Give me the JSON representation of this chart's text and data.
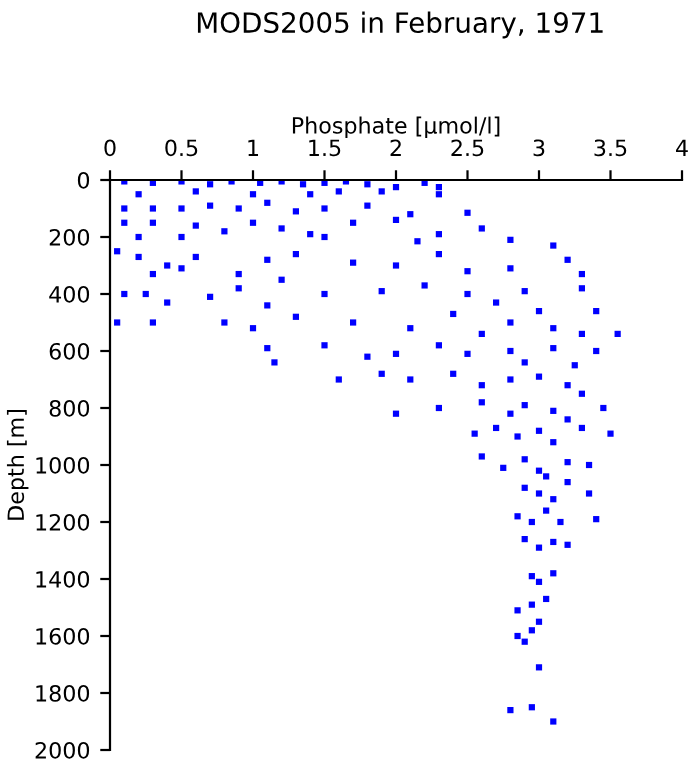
{
  "chart_data": {
    "type": "scatter",
    "title": "MODS2005 in February, 1971",
    "xlabel": "Phosphate [µmol/l]",
    "ylabel": "Depth [m]",
    "xlim": [
      0,
      4
    ],
    "xticks": [
      0,
      0.5,
      1,
      1.5,
      2,
      2.5,
      3,
      3.5,
      4
    ],
    "ylim": [
      2000,
      0
    ],
    "yticks": [
      0,
      200,
      400,
      600,
      800,
      1000,
      1200,
      1400,
      1600,
      1800,
      2000
    ],
    "grid": false,
    "legend": false,
    "marker": "square",
    "series": [
      {
        "color": "#0000ff",
        "x": [
          0.1,
          0.3,
          0.5,
          0.7,
          0.85,
          1.05,
          1.2,
          1.35,
          1.5,
          1.65,
          1.8,
          2.0,
          2.2,
          2.3,
          2.3,
          1.9,
          1.6,
          1.4,
          0.2,
          0.6,
          1.0,
          0.1,
          0.3,
          0.5,
          0.7,
          0.9,
          1.1,
          1.3,
          1.5,
          1.8,
          2.1,
          0.1,
          0.3,
          0.6,
          0.8,
          1.0,
          1.2,
          1.4,
          1.7,
          2.0,
          2.5,
          2.6,
          2.3,
          0.2,
          0.5,
          1.5,
          2.8,
          3.1,
          2.15,
          0.05,
          0.2,
          0.4,
          0.5,
          0.6,
          0.9,
          1.1,
          1.3,
          1.7,
          2.0,
          2.3,
          2.5,
          2.8,
          3.2,
          3.3,
          1.2,
          0.3,
          0.1,
          0.25,
          0.4,
          0.7,
          0.9,
          1.1,
          1.5,
          1.9,
          2.2,
          2.5,
          2.7,
          2.9,
          3.0,
          3.3,
          3.4,
          0.05,
          0.3,
          0.8,
          1.0,
          1.3,
          1.7,
          2.1,
          2.4,
          2.6,
          2.8,
          3.1,
          3.3,
          3.55,
          1.1,
          1.15,
          1.5,
          1.8,
          2.0,
          2.3,
          2.5,
          2.8,
          2.9,
          3.1,
          3.4,
          3.25,
          1.6,
          1.9,
          2.1,
          2.4,
          2.6,
          2.8,
          3.0,
          3.2,
          3.3,
          2.0,
          2.3,
          2.6,
          2.8,
          2.9,
          3.1,
          3.2,
          3.45,
          2.55,
          2.7,
          2.85,
          3.0,
          3.1,
          3.3,
          3.5,
          2.6,
          2.75,
          2.9,
          3.0,
          3.05,
          3.2,
          3.35,
          2.9,
          3.0,
          3.1,
          3.2,
          3.35,
          2.85,
          2.95,
          3.05,
          3.15,
          3.4,
          2.9,
          3.0,
          3.1,
          3.2,
          2.95,
          3.0,
          3.1,
          3.05,
          2.85,
          2.95,
          3.0,
          2.85,
          2.95,
          2.9,
          3.0,
          2.8,
          2.95,
          3.1
        ],
        "values": [
          5,
          10,
          5,
          15,
          5,
          10,
          5,
          15,
          10,
          5,
          15,
          25,
          10,
          25,
          50,
          40,
          40,
          50,
          50,
          40,
          50,
          100,
          100,
          100,
          90,
          100,
          80,
          110,
          100,
          90,
          120,
          150,
          150,
          160,
          180,
          150,
          170,
          190,
          150,
          140,
          115,
          170,
          190,
          200,
          200,
          200,
          210,
          230,
          215,
          250,
          270,
          300,
          310,
          270,
          330,
          280,
          260,
          290,
          300,
          260,
          320,
          310,
          280,
          330,
          350,
          330,
          400,
          400,
          430,
          410,
          380,
          440,
          400,
          390,
          370,
          400,
          430,
          390,
          460,
          380,
          460,
          500,
          500,
          500,
          520,
          480,
          500,
          520,
          470,
          540,
          500,
          520,
          540,
          540,
          590,
          640,
          580,
          620,
          610,
          580,
          610,
          600,
          640,
          590,
          600,
          650,
          700,
          680,
          700,
          680,
          720,
          700,
          690,
          720,
          750,
          820,
          800,
          780,
          820,
          790,
          810,
          840,
          800,
          890,
          870,
          900,
          880,
          920,
          870,
          890,
          970,
          1010,
          980,
          1020,
          1040,
          990,
          1000,
          1080,
          1100,
          1120,
          1060,
          1100,
          1180,
          1200,
          1160,
          1200,
          1190,
          1260,
          1290,
          1270,
          1280,
          1390,
          1410,
          1380,
          1470,
          1510,
          1490,
          1550,
          1600,
          1580,
          1620,
          1710,
          1860,
          1850,
          1900
        ]
      }
    ]
  }
}
